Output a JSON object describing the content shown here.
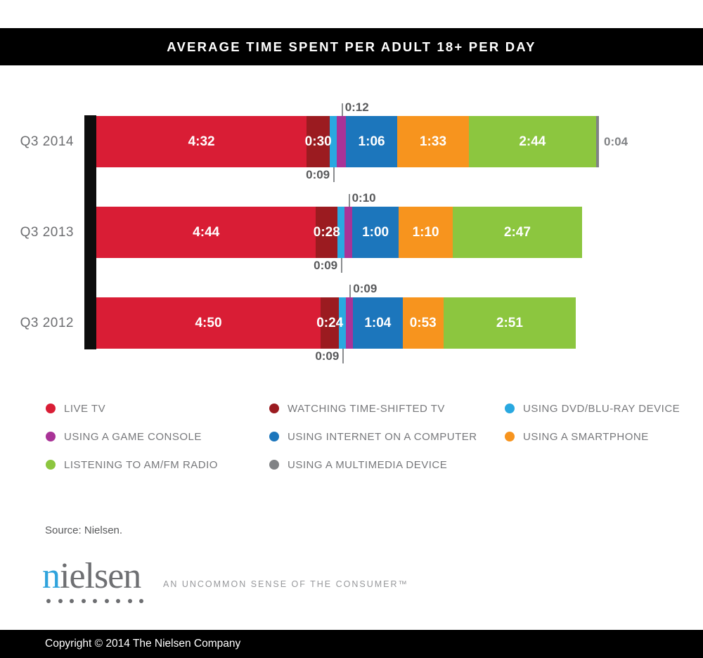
{
  "title_bar": {
    "title": "AVERAGE TIME SPENT PER ADULT 18+ PER DAY"
  },
  "chart_data": {
    "type": "bar",
    "orientation": "horizontal-stacked",
    "unit": "hours:minutes per day",
    "categories": [
      "Q3 2014",
      "Q3 2013",
      "Q3 2012"
    ],
    "series": [
      {
        "key": "live_tv",
        "name": "LIVE TV",
        "color": "#D91D35",
        "values": [
          "4:32",
          "4:44",
          "4:50"
        ],
        "minutes": [
          272,
          284,
          290
        ],
        "label_placement": "inside"
      },
      {
        "key": "time_shifted_tv",
        "name": "WATCHING TIME-SHIFTED TV",
        "color": "#9B1B20",
        "values": [
          "0:30",
          "0:28",
          "0:24"
        ],
        "minutes": [
          30,
          28,
          24
        ],
        "label_placement": "inside"
      },
      {
        "key": "dvd_bluray",
        "name": "USING DVD/BLU-RAY DEVICE",
        "color": "#29A8E0",
        "values": [
          "0:09",
          "0:09",
          "0:09"
        ],
        "minutes": [
          9,
          9,
          9
        ],
        "label_placement": "below"
      },
      {
        "key": "game_console",
        "name": "USING A GAME CONSOLE",
        "color": "#A93397",
        "values": [
          "0:12",
          "0:10",
          "0:09"
        ],
        "minutes": [
          12,
          10,
          9
        ],
        "label_placement": "above"
      },
      {
        "key": "internet_computer",
        "name": "USING INTERNET ON A COMPUTER",
        "color": "#1C76BC",
        "values": [
          "1:06",
          "1:00",
          "1:04"
        ],
        "minutes": [
          66,
          60,
          64
        ],
        "label_placement": "inside"
      },
      {
        "key": "smartphone",
        "name": "USING A SMARTPHONE",
        "color": "#F7941E",
        "values": [
          "1:33",
          "1:10",
          "0:53"
        ],
        "minutes": [
          93,
          70,
          53
        ],
        "label_placement": "inside"
      },
      {
        "key": "radio",
        "name": "LISTENING TO AM/FM RADIO",
        "color": "#8CC63F",
        "values": [
          "2:44",
          "2:47",
          "2:51"
        ],
        "minutes": [
          164,
          167,
          171
        ],
        "label_placement": "inside"
      },
      {
        "key": "multimedia_device",
        "name": "USING A MULTIMEDIA DEVICE",
        "color": "#808285",
        "values": [
          "0:04",
          null,
          null
        ],
        "minutes": [
          4,
          0,
          0
        ],
        "label_placement": "right"
      }
    ]
  },
  "legend": {
    "items": [
      {
        "key": "live_tv",
        "label": "LIVE TV",
        "color": "#D91D35"
      },
      {
        "key": "time_shifted_tv",
        "label": "WATCHING TIME-SHIFTED TV",
        "color": "#9B1B20"
      },
      {
        "key": "dvd_bluray",
        "label": "USING DVD/BLU-RAY DEVICE",
        "color": "#29A8E0"
      },
      {
        "key": "game_console",
        "label": "USING A GAME CONSOLE",
        "color": "#A93397"
      },
      {
        "key": "internet_computer",
        "label": "USING INTERNET ON A COMPUTER",
        "color": "#1C76BC"
      },
      {
        "key": "smartphone",
        "label": "USING A SMARTPHONE",
        "color": "#F7941E"
      },
      {
        "key": "radio",
        "label": "LISTENING TO AM/FM RADIO",
        "color": "#8CC63F"
      },
      {
        "key": "multimedia_device",
        "label": "USING A MULTIMEDIA DEVICE",
        "color": "#808285"
      }
    ]
  },
  "source": {
    "text": "Source: Nielsen."
  },
  "logo": {
    "wordmark_first": "n",
    "wordmark_rest": "ielsen",
    "tagline": "AN UNCOMMON SENSE OF THE CONSUMER™"
  },
  "footer": {
    "copyright": "Copyright © 2014 The Nielsen Company"
  },
  "colors": {
    "band_black": "#000000",
    "axis_black": "#0D0D0D",
    "row_label_gray": "#6D6E71",
    "annotation_gray": "#58595B",
    "tick_gray": "#8A8C8F",
    "legend_text_gray": "#77787B",
    "tagline_gray": "#97989B",
    "logo_blue": "#2FA3DC",
    "logo_gray": "#6E6F72",
    "value_text_white": "#FFFFFF"
  }
}
